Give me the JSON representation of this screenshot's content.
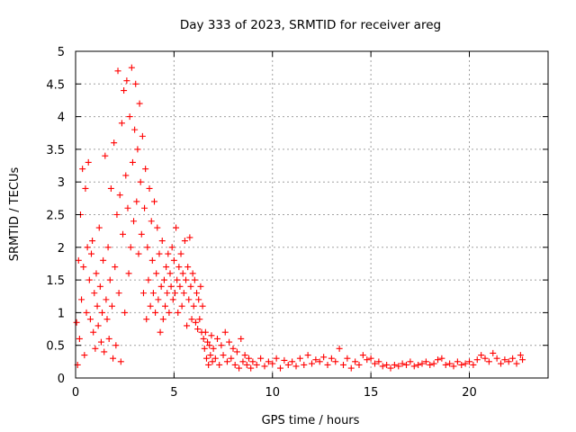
{
  "chart_data": {
    "type": "scatter",
    "title": "Day 333 of 2023, SRMTID for receiver areg",
    "xlabel": "GPS time / hours",
    "ylabel": "SRMTID / TECUs",
    "xlim": [
      0,
      24
    ],
    "ylim": [
      0,
      5
    ],
    "grid": true,
    "marker": "+",
    "color": "#ff0000",
    "x_ticks": [
      0,
      5,
      10,
      15,
      20
    ],
    "x_tick_labels": [
      "0",
      "5",
      "10",
      "15",
      "20"
    ],
    "y_ticks": [
      0,
      0.5,
      1,
      1.5,
      2,
      2.5,
      3,
      3.5,
      4,
      4.5,
      5
    ],
    "y_tick_labels": [
      "0",
      "0.5",
      "1",
      "1.5",
      "2",
      "2.5",
      "3",
      "3.5",
      "4",
      "4.5",
      "5"
    ],
    "series": [
      {
        "name": "SRMTID",
        "points": [
          [
            0.05,
            0.85
          ],
          [
            0.1,
            0.2
          ],
          [
            0.15,
            1.8
          ],
          [
            0.2,
            0.6
          ],
          [
            0.25,
            2.5
          ],
          [
            0.3,
            1.2
          ],
          [
            0.35,
            3.2
          ],
          [
            0.4,
            1.7
          ],
          [
            0.45,
            0.35
          ],
          [
            0.5,
            2.9
          ],
          [
            0.55,
            1.0
          ],
          [
            0.6,
            2.0
          ],
          [
            0.65,
            3.3
          ],
          [
            0.7,
            1.5
          ],
          [
            0.75,
            0.9
          ],
          [
            0.8,
            1.9
          ],
          [
            0.85,
            2.1
          ],
          [
            0.9,
            0.7
          ],
          [
            0.95,
            1.3
          ],
          [
            1.0,
            0.45
          ],
          [
            1.05,
            1.6
          ],
          [
            1.1,
            1.1
          ],
          [
            1.15,
            0.8
          ],
          [
            1.2,
            2.3
          ],
          [
            1.25,
            1.4
          ],
          [
            1.3,
            0.55
          ],
          [
            1.35,
            1.0
          ],
          [
            1.4,
            1.8
          ],
          [
            1.45,
            0.4
          ],
          [
            1.5,
            3.4
          ],
          [
            1.55,
            1.2
          ],
          [
            1.6,
            0.9
          ],
          [
            1.65,
            2.0
          ],
          [
            1.7,
            0.6
          ],
          [
            1.75,
            1.5
          ],
          [
            1.8,
            2.9
          ],
          [
            1.85,
            1.1
          ],
          [
            1.9,
            0.3
          ],
          [
            1.95,
            3.6
          ],
          [
            2.0,
            1.7
          ],
          [
            2.05,
            0.5
          ],
          [
            2.1,
            2.5
          ],
          [
            2.15,
            4.7
          ],
          [
            2.2,
            1.3
          ],
          [
            2.25,
            2.8
          ],
          [
            2.3,
            0.25
          ],
          [
            2.35,
            3.9
          ],
          [
            2.4,
            2.2
          ],
          [
            2.45,
            4.4
          ],
          [
            2.5,
            1.0
          ],
          [
            2.55,
            3.1
          ],
          [
            2.6,
            4.55
          ],
          [
            2.65,
            2.6
          ],
          [
            2.7,
            1.6
          ],
          [
            2.75,
            4.0
          ],
          [
            2.8,
            2.0
          ],
          [
            2.85,
            4.75
          ],
          [
            2.9,
            3.3
          ],
          [
            2.95,
            2.4
          ],
          [
            3.0,
            3.8
          ],
          [
            3.05,
            4.5
          ],
          [
            3.1,
            2.7
          ],
          [
            3.15,
            3.5
          ],
          [
            3.2,
            1.9
          ],
          [
            3.25,
            4.2
          ],
          [
            3.3,
            3.0
          ],
          [
            3.35,
            2.2
          ],
          [
            3.4,
            3.7
          ],
          [
            3.45,
            1.3
          ],
          [
            3.5,
            2.6
          ],
          [
            3.55,
            3.2
          ],
          [
            3.6,
            0.9
          ],
          [
            3.65,
            2.0
          ],
          [
            3.7,
            1.5
          ],
          [
            3.75,
            2.9
          ],
          [
            3.8,
            1.1
          ],
          [
            3.85,
            2.4
          ],
          [
            3.9,
            1.8
          ],
          [
            3.95,
            1.3
          ],
          [
            4.0,
            2.7
          ],
          [
            4.05,
            1.0
          ],
          [
            4.1,
            1.6
          ],
          [
            4.15,
            2.3
          ],
          [
            4.2,
            1.2
          ],
          [
            4.25,
            1.9
          ],
          [
            4.3,
            0.7
          ],
          [
            4.35,
            1.4
          ],
          [
            4.4,
            2.1
          ],
          [
            4.45,
            0.9
          ],
          [
            4.5,
            1.5
          ],
          [
            4.55,
            1.1
          ],
          [
            4.6,
            1.7
          ],
          [
            4.65,
            1.3
          ],
          [
            4.7,
            1.9
          ],
          [
            4.75,
            1.0
          ],
          [
            4.8,
            1.6
          ],
          [
            4.85,
            1.4
          ],
          [
            4.9,
            2.0
          ],
          [
            4.95,
            1.2
          ],
          [
            5.0,
            1.8
          ],
          [
            5.05,
            1.3
          ],
          [
            5.1,
            2.3
          ],
          [
            5.15,
            1.5
          ],
          [
            5.2,
            1.0
          ],
          [
            5.25,
            1.7
          ],
          [
            5.3,
            1.4
          ],
          [
            5.35,
            1.9
          ],
          [
            5.4,
            1.1
          ],
          [
            5.45,
            1.6
          ],
          [
            5.5,
            1.3
          ],
          [
            5.55,
            2.1
          ],
          [
            5.6,
            1.5
          ],
          [
            5.65,
            0.8
          ],
          [
            5.7,
            1.7
          ],
          [
            5.75,
            1.2
          ],
          [
            5.8,
            2.15
          ],
          [
            5.85,
            1.4
          ],
          [
            5.9,
            0.9
          ],
          [
            5.95,
            1.6
          ],
          [
            6.0,
            1.1
          ],
          [
            6.05,
            1.5
          ],
          [
            6.1,
            0.85
          ],
          [
            6.15,
            1.3
          ],
          [
            6.2,
            0.75
          ],
          [
            6.25,
            1.2
          ],
          [
            6.3,
            0.9
          ],
          [
            6.35,
            1.4
          ],
          [
            6.4,
            0.7
          ],
          [
            6.45,
            1.1
          ],
          [
            6.5,
            0.6
          ],
          [
            6.55,
            0.45
          ],
          [
            6.6,
            0.7
          ],
          [
            6.65,
            0.3
          ],
          [
            6.7,
            0.55
          ],
          [
            6.75,
            0.2
          ],
          [
            6.8,
            0.5
          ],
          [
            6.85,
            0.35
          ],
          [
            6.9,
            0.65
          ],
          [
            6.95,
            0.25
          ],
          [
            7.0,
            0.45
          ],
          [
            7.1,
            0.3
          ],
          [
            7.2,
            0.6
          ],
          [
            7.3,
            0.2
          ],
          [
            7.4,
            0.5
          ],
          [
            7.5,
            0.35
          ],
          [
            7.6,
            0.7
          ],
          [
            7.7,
            0.25
          ],
          [
            7.8,
            0.55
          ],
          [
            7.9,
            0.3
          ],
          [
            8.0,
            0.45
          ],
          [
            8.1,
            0.2
          ],
          [
            8.2,
            0.4
          ],
          [
            8.3,
            0.15
          ],
          [
            8.4,
            0.6
          ],
          [
            8.5,
            0.25
          ],
          [
            8.6,
            0.35
          ],
          [
            8.7,
            0.2
          ],
          [
            8.8,
            0.3
          ],
          [
            8.9,
            0.15
          ],
          [
            9.0,
            0.25
          ],
          [
            9.2,
            0.2
          ],
          [
            9.4,
            0.3
          ],
          [
            9.6,
            0.18
          ],
          [
            9.8,
            0.25
          ],
          [
            10.0,
            0.22
          ],
          [
            10.2,
            0.3
          ],
          [
            10.4,
            0.15
          ],
          [
            10.6,
            0.27
          ],
          [
            10.8,
            0.2
          ],
          [
            11.0,
            0.25
          ],
          [
            11.2,
            0.18
          ],
          [
            11.4,
            0.3
          ],
          [
            11.6,
            0.2
          ],
          [
            11.8,
            0.35
          ],
          [
            12.0,
            0.22
          ],
          [
            12.2,
            0.28
          ],
          [
            12.4,
            0.25
          ],
          [
            12.6,
            0.32
          ],
          [
            12.8,
            0.2
          ],
          [
            13.0,
            0.3
          ],
          [
            13.2,
            0.25
          ],
          [
            13.4,
            0.45
          ],
          [
            13.6,
            0.2
          ],
          [
            13.8,
            0.3
          ],
          [
            14.0,
            0.15
          ],
          [
            14.2,
            0.25
          ],
          [
            14.4,
            0.2
          ],
          [
            14.6,
            0.35
          ],
          [
            14.8,
            0.28
          ],
          [
            15.0,
            0.3
          ],
          [
            15.2,
            0.22
          ],
          [
            15.4,
            0.25
          ],
          [
            15.6,
            0.18
          ],
          [
            15.8,
            0.2
          ],
          [
            16.0,
            0.15
          ],
          [
            16.2,
            0.2
          ],
          [
            16.4,
            0.18
          ],
          [
            16.6,
            0.22
          ],
          [
            16.8,
            0.2
          ],
          [
            17.0,
            0.25
          ],
          [
            17.2,
            0.18
          ],
          [
            17.4,
            0.2
          ],
          [
            17.6,
            0.22
          ],
          [
            17.8,
            0.25
          ],
          [
            18.0,
            0.2
          ],
          [
            18.2,
            0.22
          ],
          [
            18.4,
            0.28
          ],
          [
            18.6,
            0.3
          ],
          [
            18.8,
            0.2
          ],
          [
            19.0,
            0.22
          ],
          [
            19.2,
            0.18
          ],
          [
            19.4,
            0.25
          ],
          [
            19.6,
            0.2
          ],
          [
            19.8,
            0.22
          ],
          [
            20.0,
            0.25
          ],
          [
            20.2,
            0.2
          ],
          [
            20.4,
            0.28
          ],
          [
            20.6,
            0.35
          ],
          [
            20.8,
            0.3
          ],
          [
            21.0,
            0.25
          ],
          [
            21.2,
            0.38
          ],
          [
            21.4,
            0.3
          ],
          [
            21.6,
            0.22
          ],
          [
            21.8,
            0.28
          ],
          [
            22.0,
            0.25
          ],
          [
            22.2,
            0.3
          ],
          [
            22.4,
            0.22
          ],
          [
            22.6,
            0.35
          ],
          [
            22.7,
            0.28
          ]
        ]
      }
    ]
  }
}
